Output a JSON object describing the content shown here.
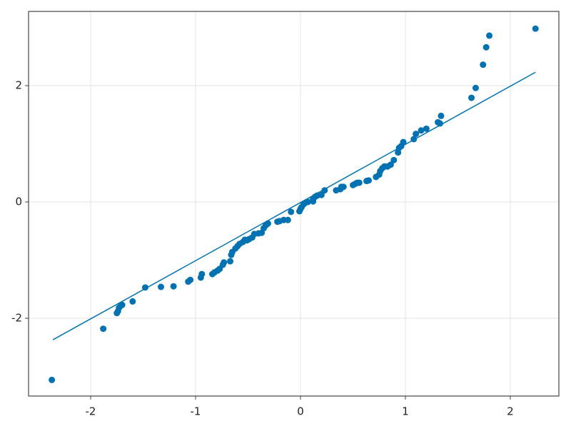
{
  "chart_data": {
    "type": "scatter",
    "series": [
      {
        "color": "#0072b2",
        "x": [
          -2.37,
          -1.88,
          -1.75,
          -1.74,
          -1.73,
          -1.71,
          -1.7,
          -1.6,
          -1.48,
          -1.33,
          -1.21,
          -1.07,
          -1.05,
          -0.95,
          -0.94,
          -0.84,
          -0.82,
          -0.79,
          -0.77,
          -0.74,
          -0.73,
          -0.67,
          -0.66,
          -0.65,
          -0.62,
          -0.6,
          -0.58,
          -0.55,
          -0.53,
          -0.51,
          -0.49,
          -0.46,
          -0.44,
          -0.4,
          -0.37,
          -0.35,
          -0.33,
          -0.31,
          -0.22,
          -0.2,
          -0.16,
          -0.12,
          -0.09,
          -0.01,
          0.0,
          0.01,
          0.03,
          0.05,
          0.07,
          0.12,
          0.12,
          0.14,
          0.16,
          0.2,
          0.23,
          0.34,
          0.38,
          0.39,
          0.41,
          0.5,
          0.52,
          0.54,
          0.56,
          0.63,
          0.65,
          0.72,
          0.75,
          0.76,
          0.78,
          0.8,
          0.83,
          0.86,
          0.89,
          0.93,
          0.94,
          0.96,
          0.98,
          1.08,
          1.1,
          1.15,
          1.2,
          1.31,
          1.33,
          1.34,
          1.63,
          1.67,
          1.74,
          1.77,
          1.8,
          2.24
        ],
        "values": [
          -3.06,
          -2.18,
          -1.91,
          -1.88,
          -1.82,
          -1.78,
          -1.77,
          -1.71,
          -1.47,
          -1.46,
          -1.45,
          -1.37,
          -1.34,
          -1.3,
          -1.24,
          -1.24,
          -1.21,
          -1.18,
          -1.15,
          -1.08,
          -1.04,
          -1.02,
          -0.91,
          -0.86,
          -0.8,
          -0.76,
          -0.72,
          -0.69,
          -0.65,
          -0.66,
          -0.64,
          -0.61,
          -0.55,
          -0.54,
          -0.53,
          -0.45,
          -0.4,
          -0.37,
          -0.34,
          -0.33,
          -0.31,
          -0.31,
          -0.17,
          -0.16,
          -0.12,
          -0.09,
          -0.04,
          -0.01,
          0.0,
          0.01,
          0.05,
          0.09,
          0.11,
          0.12,
          0.2,
          0.2,
          0.22,
          0.26,
          0.26,
          0.29,
          0.31,
          0.33,
          0.33,
          0.36,
          0.37,
          0.43,
          0.47,
          0.53,
          0.58,
          0.61,
          0.61,
          0.64,
          0.72,
          0.85,
          0.93,
          0.96,
          1.03,
          1.08,
          1.17,
          1.23,
          1.26,
          1.37,
          1.35,
          1.48,
          1.79,
          1.96,
          2.36,
          2.66,
          2.86,
          2.98
        ]
      },
      {
        "type": "line",
        "color": "#0072b2",
        "x": [
          -2.36,
          2.24
        ],
        "values": [
          -2.37,
          2.23
        ]
      }
    ],
    "xlim": [
      -2.592,
      2.463
    ],
    "ylim": [
      -3.337,
      3.276
    ],
    "xticks": [
      -2,
      -1,
      0,
      1,
      2
    ],
    "yticks": [
      -2,
      0,
      2
    ],
    "grid": true
  }
}
